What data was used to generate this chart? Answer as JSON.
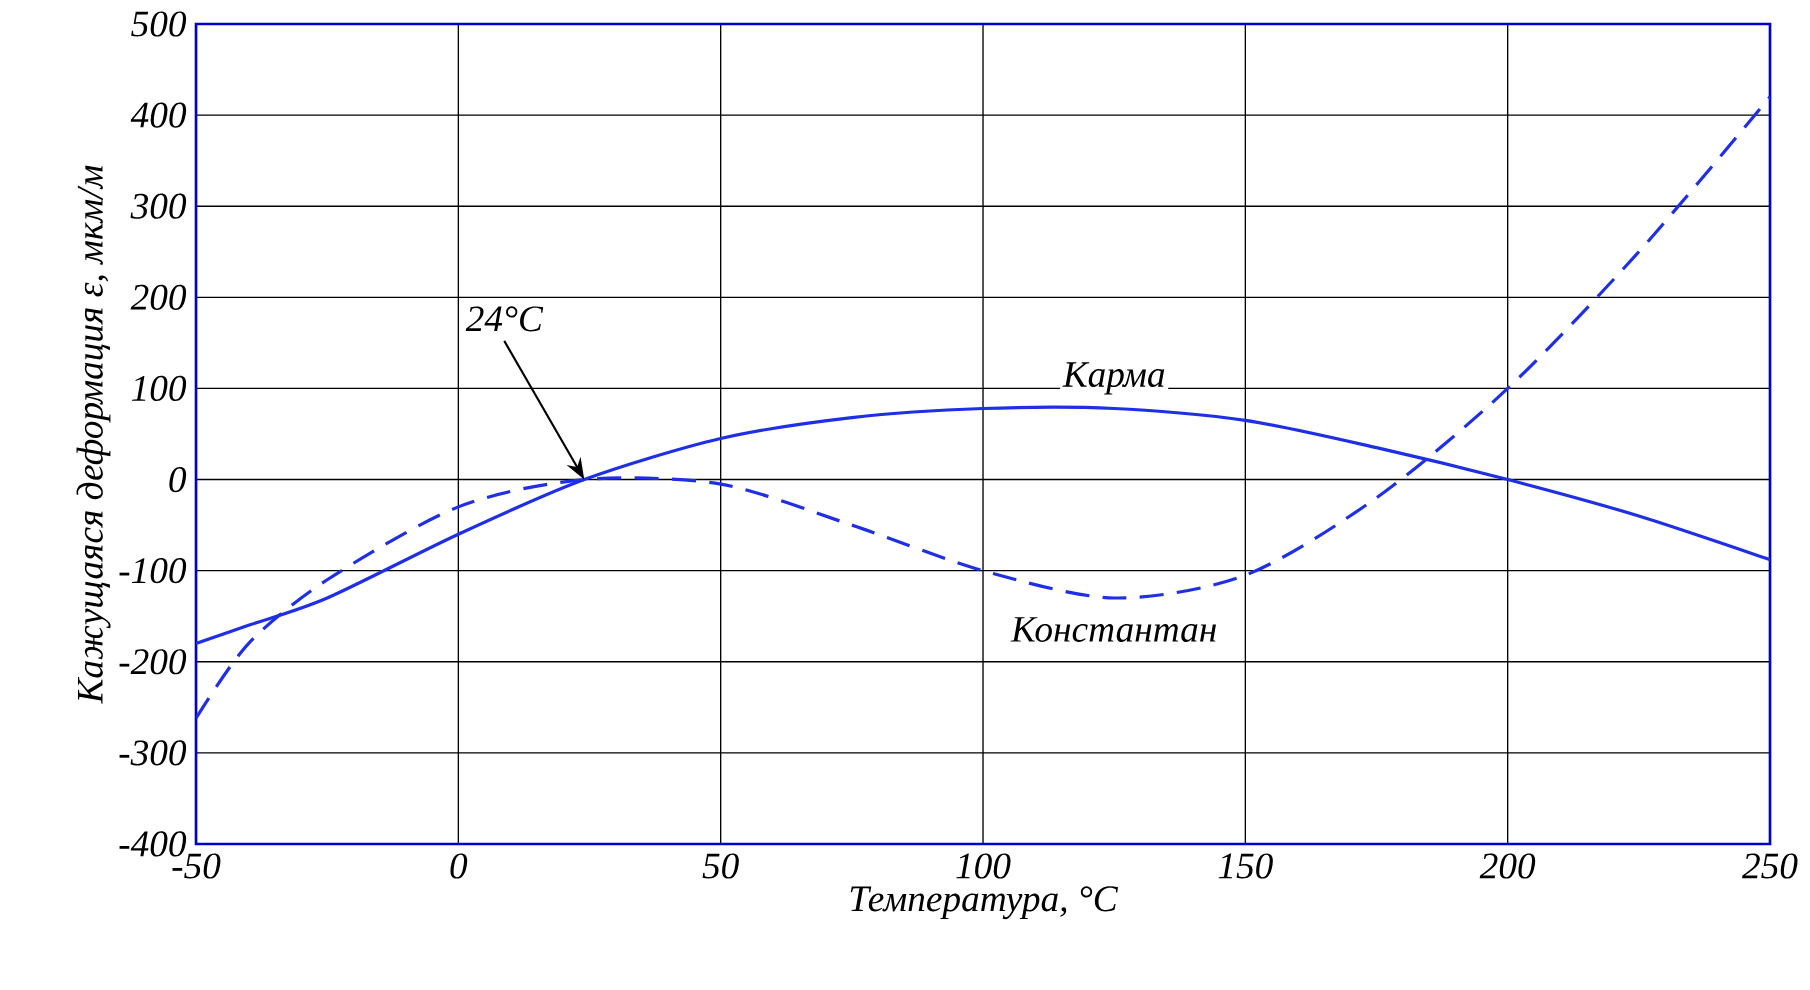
{
  "chart_data": {
    "type": "line",
    "xlabel": "Температура, °C",
    "ylabel": "Кажущаяся деформация ε, мкм/м",
    "x": [
      -50,
      -40,
      -25,
      0,
      24,
      50,
      75,
      100,
      125,
      150,
      175,
      200,
      225,
      250
    ],
    "series": [
      {
        "name": "Карма",
        "color": "#1f2fe6",
        "line_style": "solid",
        "values": [
          -180,
          -160,
          -130,
          -60,
          0,
          45,
          68,
          78,
          78,
          65,
          35,
          0,
          -40,
          -88
        ]
      },
      {
        "name": "Константан",
        "color": "#1f2fe6",
        "line_style": "dashed",
        "values": [
          -262,
          -180,
          -110,
          -30,
          0,
          -5,
          -50,
          -100,
          -130,
          -105,
          -20,
          100,
          250,
          420
        ]
      }
    ],
    "xlim": [
      -50,
      250
    ],
    "ylim": [
      -400,
      500
    ],
    "xticks": [
      -50,
      0,
      50,
      100,
      150,
      200,
      250
    ],
    "yticks": [
      -400,
      -300,
      -200,
      -100,
      0,
      100,
      200,
      300,
      400,
      500
    ],
    "grid": true,
    "legend": false,
    "annotations": [
      {
        "text": "24°C",
        "x": 24,
        "y": 0
      }
    ]
  }
}
